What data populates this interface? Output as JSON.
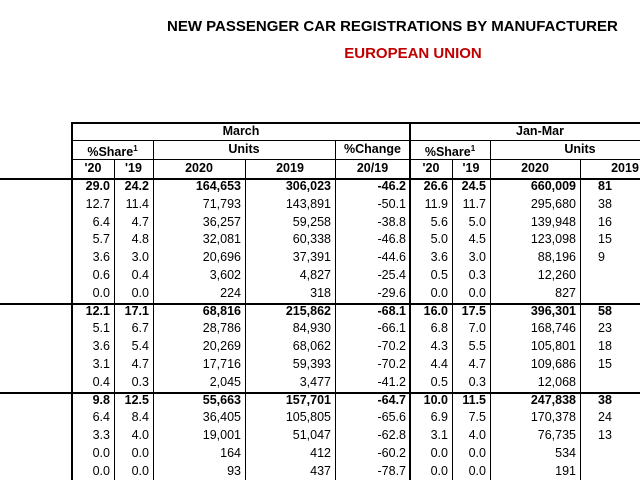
{
  "header": {
    "title": "NEW PASSENGER CAR REGISTRATIONS BY MANUFACTURER",
    "subtitle": "EUROPEAN UNION"
  },
  "table": {
    "march": {
      "label": "March",
      "share": "%Share",
      "share_note": "1",
      "units": "Units",
      "change": "%Change",
      "columns": [
        "'20",
        "'19",
        "2020",
        "2019",
        "20/19"
      ]
    },
    "janmar": {
      "label": "Jan-Mar",
      "share": "%Share",
      "share_note": "1",
      "units": "Units",
      "columns": [
        "'20",
        "'19",
        "2020",
        "2019"
      ]
    },
    "groups": [
      {
        "rows": [
          [
            "29.0",
            "24.2",
            "164,653",
            "306,023",
            "-46.2",
            "26.6",
            "24.5",
            "660,009",
            "81"
          ],
          [
            "12.7",
            "11.4",
            "71,793",
            "143,891",
            "-50.1",
            "11.9",
            "11.7",
            "295,680",
            "38"
          ],
          [
            "6.4",
            "4.7",
            "36,257",
            "59,258",
            "-38.8",
            "5.6",
            "5.0",
            "139,948",
            "16"
          ],
          [
            "5.7",
            "4.8",
            "32,081",
            "60,338",
            "-46.8",
            "5.0",
            "4.5",
            "123,098",
            "15"
          ],
          [
            "3.6",
            "3.0",
            "20,696",
            "37,391",
            "-44.6",
            "3.6",
            "3.0",
            "88,196",
            "9"
          ],
          [
            "0.6",
            "0.4",
            "3,602",
            "4,827",
            "-25.4",
            "0.5",
            "0.3",
            "12,260"
          ],
          [
            "0.0",
            "0.0",
            "224",
            "318",
            "-29.6",
            "0.0",
            "0.0",
            "827"
          ]
        ]
      },
      {
        "rows": [
          [
            "12.1",
            "17.1",
            "68,816",
            "215,862",
            "-68.1",
            "16.0",
            "17.5",
            "396,301",
            "58"
          ],
          [
            "5.1",
            "6.7",
            "28,786",
            "84,930",
            "-66.1",
            "6.8",
            "7.0",
            "168,746",
            "23"
          ],
          [
            "3.6",
            "5.4",
            "20,269",
            "68,062",
            "-70.2",
            "4.3",
            "5.5",
            "105,801",
            "18"
          ],
          [
            "3.1",
            "4.7",
            "17,716",
            "59,393",
            "-70.2",
            "4.4",
            "4.7",
            "109,686",
            "15"
          ],
          [
            "0.4",
            "0.3",
            "2,045",
            "3,477",
            "-41.2",
            "0.5",
            "0.3",
            "12,068"
          ]
        ]
      },
      {
        "rows": [
          [
            "9.8",
            "12.5",
            "55,663",
            "157,701",
            "-64.7",
            "10.0",
            "11.5",
            "247,838",
            "38"
          ],
          [
            "6.4",
            "8.4",
            "36,405",
            "105,805",
            "-65.6",
            "6.9",
            "7.5",
            "170,378",
            "24"
          ],
          [
            "3.3",
            "4.0",
            "19,001",
            "51,047",
            "-62.8",
            "3.1",
            "4.0",
            "76,735",
            "13"
          ],
          [
            "0.0",
            "0.0",
            "164",
            "412",
            "-60.2",
            "0.0",
            "0.0",
            "534"
          ],
          [
            "0.0",
            "0.0",
            "93",
            "437",
            "-78.7",
            "0.0",
            "0.0",
            "191"
          ]
        ]
      }
    ]
  }
}
